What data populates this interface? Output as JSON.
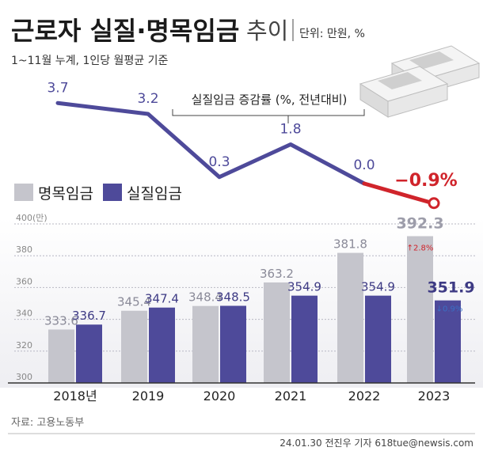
{
  "header": {
    "title_bold": "근로자 실질·명목임금",
    "title_light": "추이",
    "unit": "단위: 만원, %",
    "subtitle": "1~11월 누계, 1인당 월평균 기준"
  },
  "chart_data": [
    {
      "type": "line",
      "title": "실질임금 증감률 (%, 전년대비)",
      "x": [
        "2018년",
        "2019",
        "2020",
        "2021",
        "2022",
        "2023"
      ],
      "values": [
        3.7,
        3.2,
        0.3,
        1.8,
        0.0,
        -0.9
      ],
      "labels": [
        "3.7",
        "3.2",
        "0.3",
        "1.8",
        "0.0",
        "−0.9%"
      ],
      "colors": {
        "line": "#4e4a9a",
        "highlight": "#d0242b"
      }
    },
    {
      "type": "bar",
      "categories": [
        "2018년",
        "2019",
        "2020",
        "2021",
        "2022",
        "2023"
      ],
      "series": [
        {
          "name": "명목임금",
          "values": [
            333.6,
            345.4,
            348.4,
            363.2,
            381.8,
            392.3
          ],
          "labels": [
            "333.6",
            "345.4",
            "348.4",
            "363.2",
            "381.8",
            "392.3"
          ],
          "color": "#c5c5cc"
        },
        {
          "name": "실질임금",
          "values": [
            336.7,
            347.4,
            348.5,
            354.9,
            354.9,
            351.9
          ],
          "labels": [
            "336.7",
            "347.4",
            "348.5",
            "354.9",
            "354.9",
            "351.9"
          ],
          "color": "#4e4a9a"
        }
      ],
      "yticks": [
        300,
        320,
        340,
        360,
        380,
        400
      ],
      "ytick_labels": [
        "300",
        "320",
        "340",
        "360",
        "380",
        "400(만)"
      ],
      "ylim": [
        300,
        400
      ],
      "annotations": {
        "nominal_2023_change": "↑2.8%",
        "real_2023_change": "↓0.9%"
      }
    }
  ],
  "footer": {
    "source": "자료: 고용노동부",
    "credit": "24.01.30 전진우 기자 618tue@newsis.com"
  }
}
